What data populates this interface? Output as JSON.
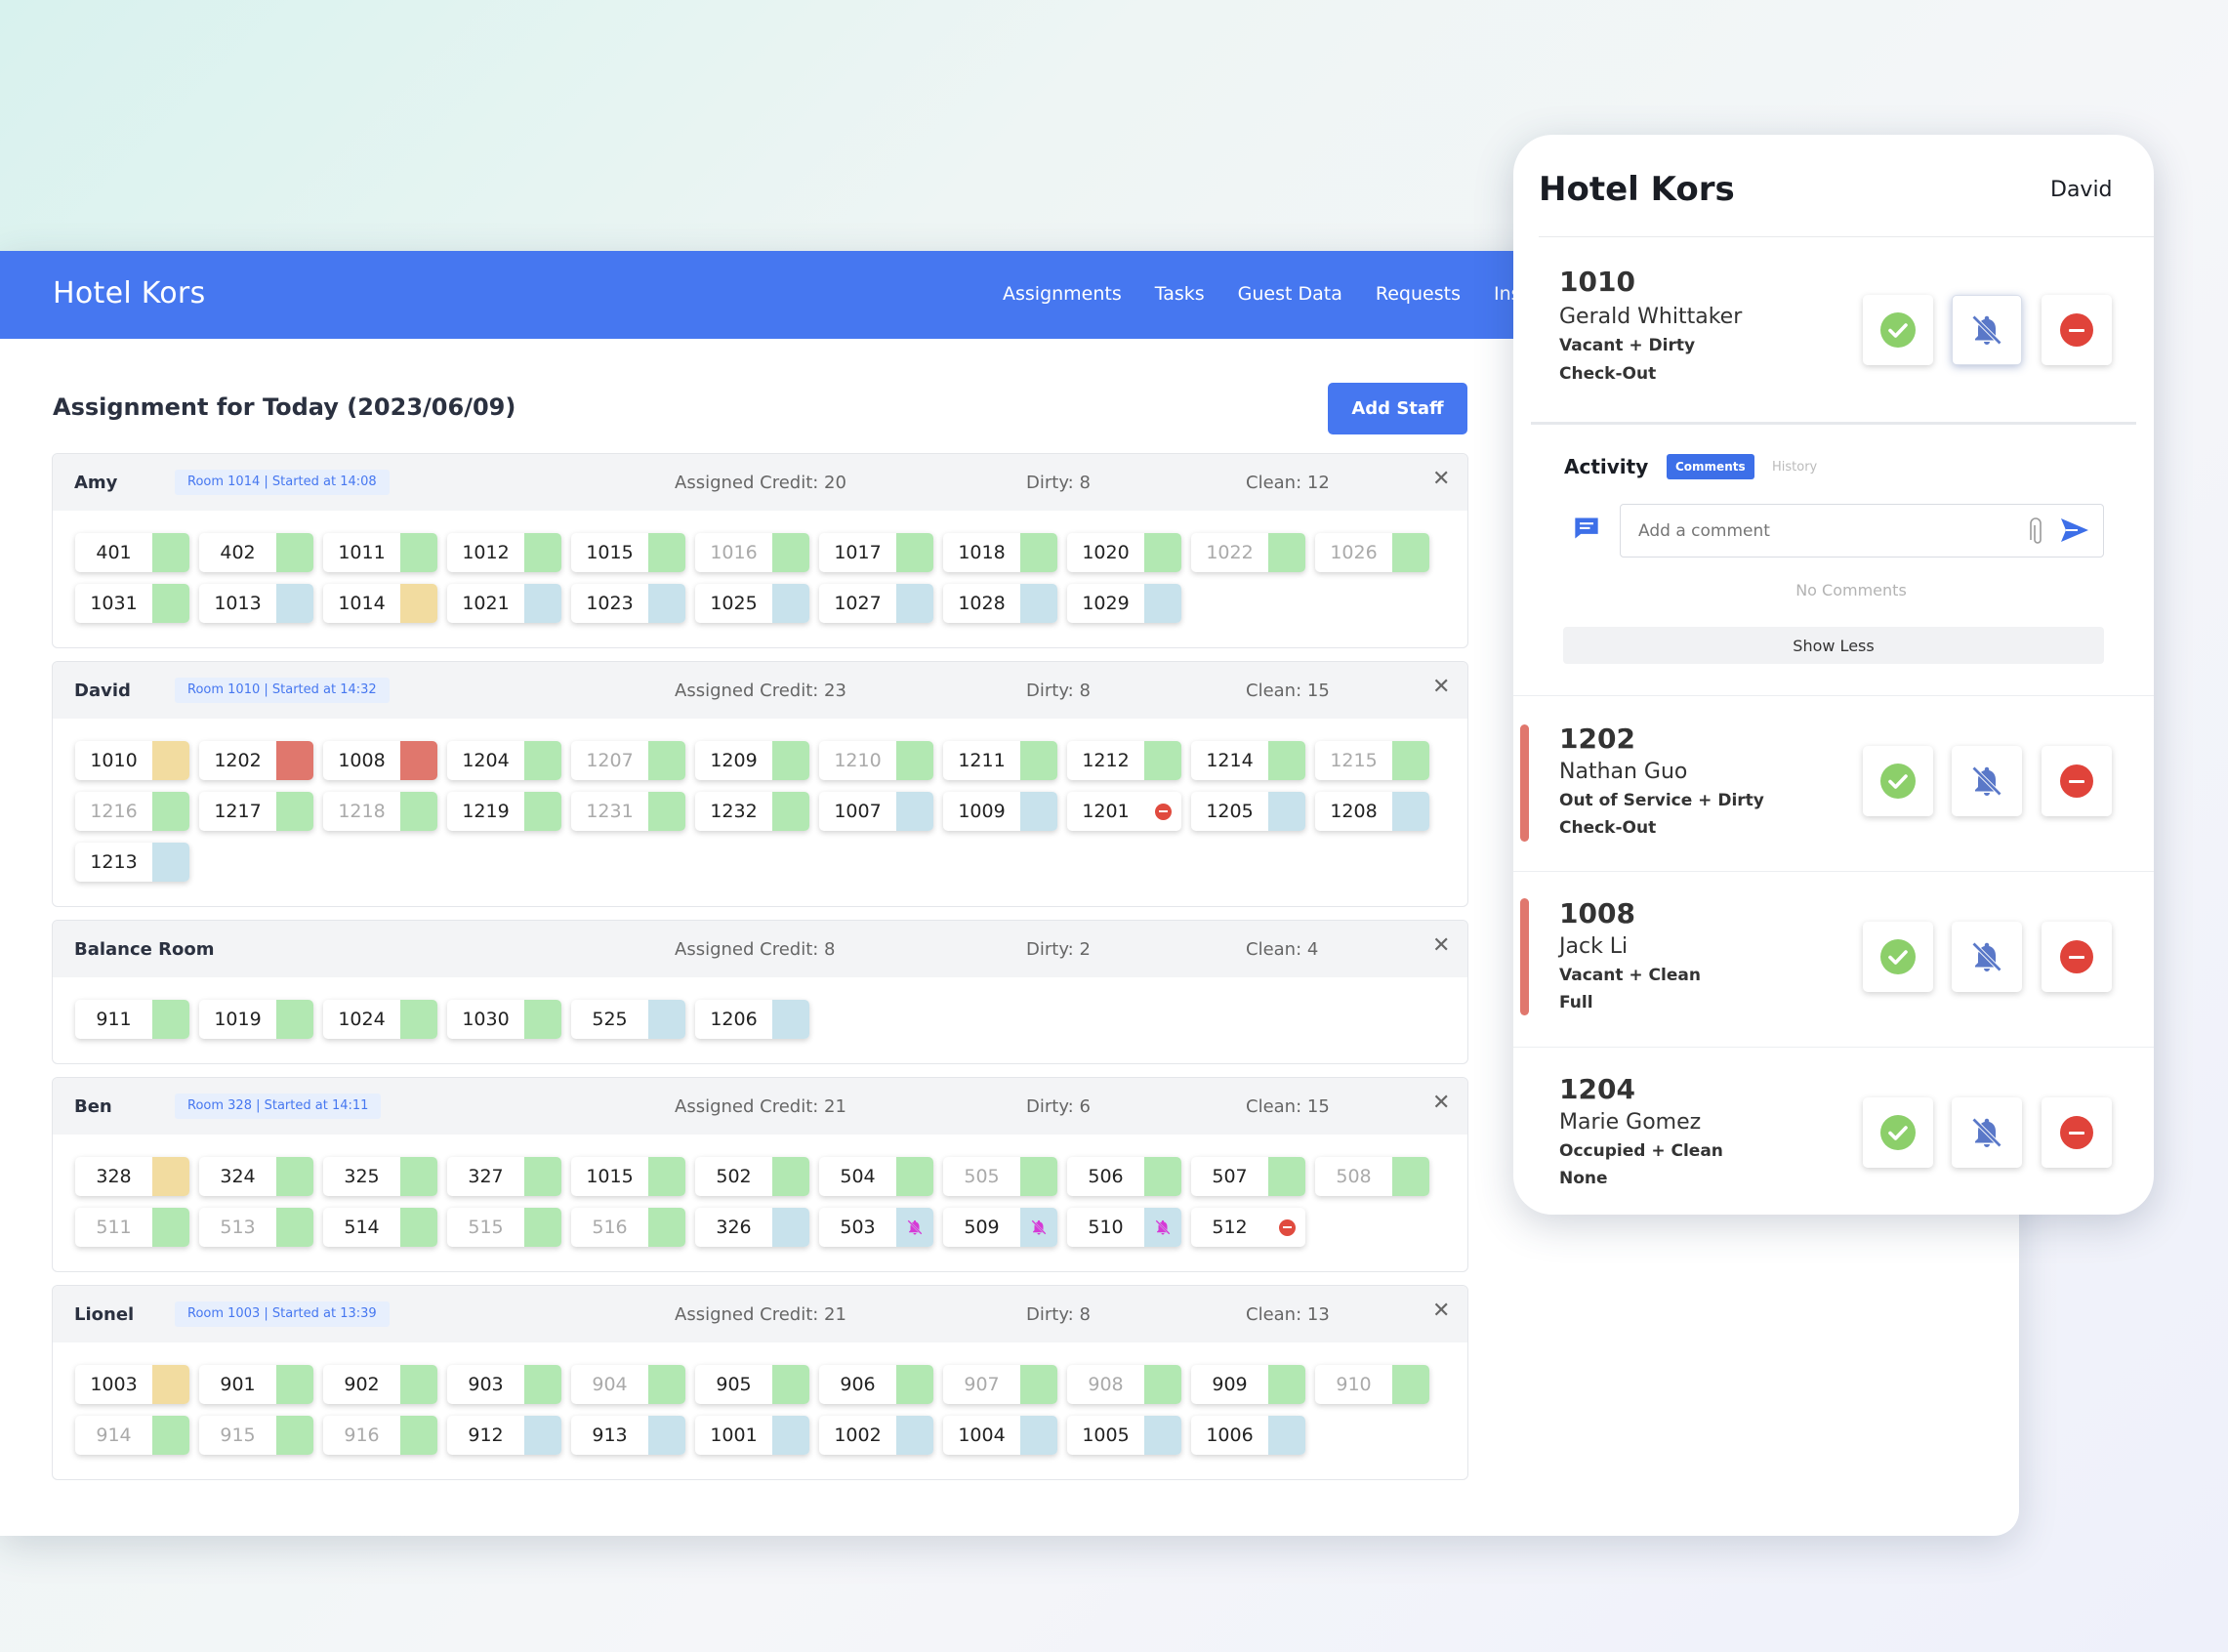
{
  "app": {
    "title": "Hotel Kors"
  },
  "nav": [
    "Assignments",
    "Tasks",
    "Guest Data",
    "Requests",
    "Inspe"
  ],
  "page": {
    "title": "Assignment for Today (2023/06/09)",
    "add_staff": "Add Staff"
  },
  "groups": [
    {
      "name": "Amy",
      "badge": "Room 1014 | Started at 14:08",
      "credit": "Assigned Credit: 20",
      "dirty": "Dirty: 8",
      "clean": "Clean: 12",
      "rooms": [
        [
          "401",
          "green",
          0
        ],
        [
          "402",
          "green",
          0
        ],
        [
          "1011",
          "green",
          0
        ],
        [
          "1012",
          "green",
          0
        ],
        [
          "1015",
          "green",
          0
        ],
        [
          "1016",
          "green",
          1
        ],
        [
          "1017",
          "green",
          0
        ],
        [
          "1018",
          "green",
          0
        ],
        [
          "1020",
          "green",
          0
        ],
        [
          "1022",
          "green",
          1
        ],
        [
          "1026",
          "green",
          1
        ],
        [
          "1031",
          "green",
          0
        ],
        [
          "1013",
          "blue",
          0
        ],
        [
          "1014",
          "yellow",
          0
        ],
        [
          "1021",
          "blue",
          0
        ],
        [
          "1023",
          "blue",
          0
        ],
        [
          "1025",
          "blue",
          0
        ],
        [
          "1027",
          "blue",
          0
        ],
        [
          "1028",
          "blue",
          0
        ],
        [
          "1029",
          "blue",
          0
        ]
      ]
    },
    {
      "name": "David",
      "badge": "Room 1010 | Started at 14:32",
      "credit": "Assigned Credit: 23",
      "dirty": "Dirty: 8",
      "clean": "Clean: 15",
      "rooms": [
        [
          "1010",
          "yellow",
          0
        ],
        [
          "1202",
          "red",
          0
        ],
        [
          "1008",
          "red",
          0
        ],
        [
          "1204",
          "green",
          0
        ],
        [
          "1207",
          "green",
          1
        ],
        [
          "1209",
          "green",
          0
        ],
        [
          "1210",
          "green",
          1
        ],
        [
          "1211",
          "green",
          0
        ],
        [
          "1212",
          "green",
          0
        ],
        [
          "1214",
          "green",
          0
        ],
        [
          "1215",
          "green",
          1
        ],
        [
          "1216",
          "green",
          1
        ],
        [
          "1217",
          "green",
          0
        ],
        [
          "1218",
          "green",
          1
        ],
        [
          "1219",
          "green",
          0
        ],
        [
          "1231",
          "green",
          1
        ],
        [
          "1232",
          "green",
          0
        ],
        [
          "1007",
          "blue",
          0
        ],
        [
          "1009",
          "blue",
          0
        ],
        [
          "1201",
          "dnd",
          0
        ],
        [
          "1205",
          "blue",
          0
        ],
        [
          "1208",
          "blue",
          0
        ],
        [
          "1213",
          "blue",
          0
        ]
      ]
    },
    {
      "name": "Balance Room",
      "badge": "",
      "credit": "Assigned Credit: 8",
      "dirty": "Dirty: 2",
      "clean": "Clean: 4",
      "rooms": [
        [
          "911",
          "green",
          0
        ],
        [
          "1019",
          "green",
          0
        ],
        [
          "1024",
          "green",
          0
        ],
        [
          "1030",
          "green",
          0
        ],
        [
          "525",
          "blue",
          0
        ],
        [
          "1206",
          "blue",
          0
        ]
      ]
    },
    {
      "name": "Ben",
      "badge": "Room 328 | Started at 14:11",
      "credit": "Assigned Credit: 21",
      "dirty": "Dirty: 6",
      "clean": "Clean: 15",
      "rooms": [
        [
          "328",
          "yellow",
          0
        ],
        [
          "324",
          "green",
          0
        ],
        [
          "325",
          "green",
          0
        ],
        [
          "327",
          "green",
          0
        ],
        [
          "1015",
          "green",
          0
        ],
        [
          "502",
          "green",
          0
        ],
        [
          "504",
          "green",
          0
        ],
        [
          "505",
          "green",
          1
        ],
        [
          "506",
          "green",
          0
        ],
        [
          "507",
          "green",
          0
        ],
        [
          "508",
          "green",
          1
        ],
        [
          "511",
          "green",
          1
        ],
        [
          "513",
          "green",
          1
        ],
        [
          "514",
          "green",
          0
        ],
        [
          "515",
          "green",
          1
        ],
        [
          "516",
          "green",
          1
        ],
        [
          "326",
          "blue",
          0
        ],
        [
          "503",
          "bell",
          0
        ],
        [
          "509",
          "bell",
          0
        ],
        [
          "510",
          "bell",
          0
        ],
        [
          "512",
          "dnd",
          0
        ]
      ]
    },
    {
      "name": "Lionel",
      "badge": "Room 1003 | Started at 13:39",
      "credit": "Assigned Credit: 21",
      "dirty": "Dirty: 8",
      "clean": "Clean: 13",
      "rooms": [
        [
          "1003",
          "yellow",
          0
        ],
        [
          "901",
          "green",
          0
        ],
        [
          "902",
          "green",
          0
        ],
        [
          "903",
          "green",
          0
        ],
        [
          "904",
          "green",
          1
        ],
        [
          "905",
          "green",
          0
        ],
        [
          "906",
          "green",
          0
        ],
        [
          "907",
          "green",
          1
        ],
        [
          "908",
          "green",
          1
        ],
        [
          "909",
          "green",
          0
        ],
        [
          "910",
          "green",
          1
        ],
        [
          "914",
          "green",
          1
        ],
        [
          "915",
          "green",
          1
        ],
        [
          "916",
          "green",
          1
        ],
        [
          "912",
          "blue",
          0
        ],
        [
          "913",
          "blue",
          0
        ],
        [
          "1001",
          "blue",
          0
        ],
        [
          "1002",
          "blue",
          0
        ],
        [
          "1004",
          "blue",
          0
        ],
        [
          "1005",
          "blue",
          0
        ],
        [
          "1006",
          "blue",
          0
        ]
      ]
    }
  ],
  "panel": {
    "title": "Hotel Kors",
    "user": "David",
    "cards": [
      {
        "number": "1010",
        "guest": "Gerald Whittaker",
        "status": "Vacant + Dirty",
        "mode": "Check-Out"
      },
      {
        "number": "1202",
        "guest": "Nathan Guo",
        "status": "Out of Service + Dirty",
        "mode": "Check-Out"
      },
      {
        "number": "1008",
        "guest": "Jack Li",
        "status": "Vacant + Clean",
        "mode": "Full"
      },
      {
        "number": "1204",
        "guest": "Marie Gomez",
        "status": "Occupied + Clean",
        "mode": "None"
      }
    ],
    "activity": {
      "title": "Activity",
      "tab_comments": "Comments",
      "tab_history": "History",
      "comment_placeholder": "Add a comment",
      "no_comments": "No Comments",
      "show_less": "Show Less"
    }
  },
  "colors": {
    "accent": "#4677f0",
    "green": "#b2e8b2",
    "blue": "#c8e2ec",
    "yellow": "#f2dca0",
    "red": "#e0776d",
    "bell": "#d63ad6"
  }
}
